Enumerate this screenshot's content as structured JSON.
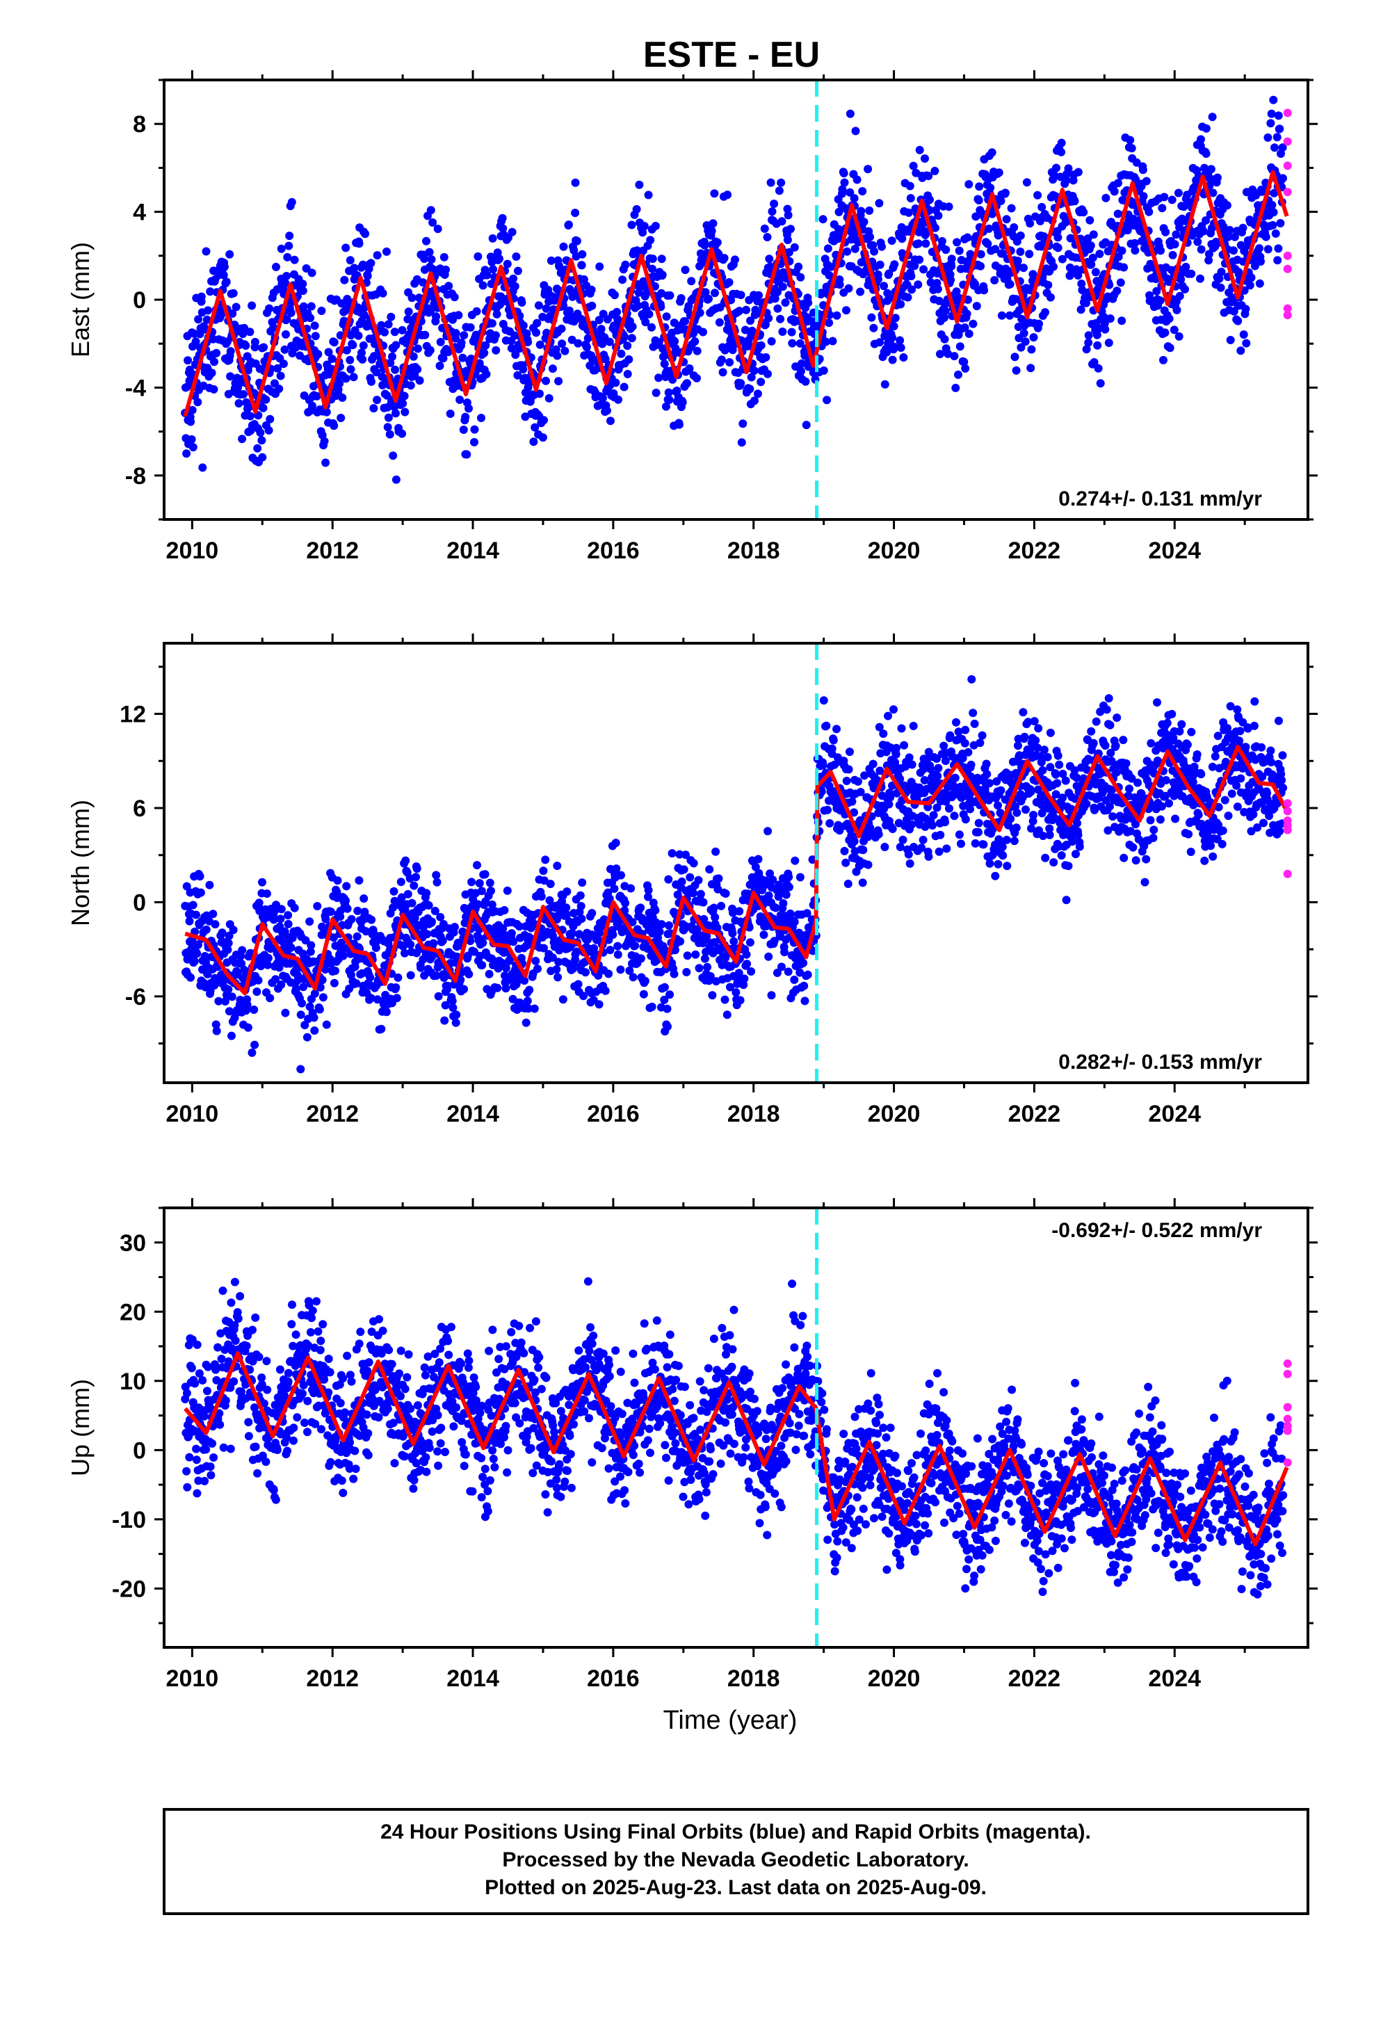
{
  "title": "ESTE - EU",
  "xlabel": "Time (year)",
  "colors": {
    "final_orbits": "#0000ff",
    "rapid_orbits": "#ff22ee",
    "model": "#ff0000",
    "equipment_change": "#22eeee",
    "frame": "#000000"
  },
  "x_ticks": [
    "2010",
    "2012",
    "2014",
    "2016",
    "2018",
    "2020",
    "2022",
    "2024"
  ],
  "footer": {
    "line1": "24 Hour Positions Using Final Orbits (blue) and Rapid Orbits (magenta).",
    "line2": "Processed by the Nevada Geodetic Laboratory.",
    "line3": "Plotted on 2025-Aug-23. Last data on 2025-Aug-09."
  },
  "chart_data": [
    {
      "type": "scatter",
      "component": "east",
      "ylabel": "East (mm)",
      "rate_label": "0.274+/- 0.131 mm/yr",
      "xlim": [
        2009.6,
        2025.9
      ],
      "ylim": [
        -10,
        10
      ],
      "y_ticks": [
        "8",
        "4",
        "0",
        "-4",
        "-8"
      ],
      "y_tick_values": [
        8,
        4,
        0,
        -4,
        -8
      ],
      "equipment_change_year": 2018.9,
      "series": [
        {
          "name": "Final Orbits",
          "style": "dots",
          "date_range": [
            2009.9,
            2025.55
          ],
          "model_trend_approx": {
            "start": -2.6,
            "end": 2.9,
            "seasonal_amplitude_mm": 2.9,
            "scatter_mm": 1.6,
            "offset_at_change_mm": 2.0
          }
        },
        {
          "name": "Rapid Orbits",
          "style": "dots",
          "x": [
            2025.61,
            2025.61,
            2025.61,
            2025.61,
            2025.61,
            2025.61,
            2025.61,
            2025.61
          ],
          "y": [
            8.5,
            7.2,
            6.1,
            4.9,
            2.0,
            1.4,
            -0.4,
            -0.7
          ]
        },
        {
          "name": "Model",
          "style": "line",
          "x": [
            2009.9,
            2010.4,
            2010.9,
            2011.4,
            2011.9,
            2012.4,
            2012.9,
            2013.4,
            2013.9,
            2014.4,
            2014.9,
            2015.4,
            2015.9,
            2016.4,
            2016.9,
            2017.4,
            2017.9,
            2018.4,
            2018.85,
            2019.4,
            2019.9,
            2020.4,
            2020.9,
            2021.4,
            2021.9,
            2022.4,
            2022.9,
            2023.4,
            2023.9,
            2024.4,
            2024.9,
            2025.4,
            2025.6
          ],
          "y": [
            -5.3,
            0.4,
            -5.1,
            0.7,
            -4.9,
            1.0,
            -4.6,
            1.2,
            -4.3,
            1.5,
            -4.1,
            1.8,
            -3.8,
            2.0,
            -3.5,
            2.3,
            -3.3,
            2.5,
            -3.0,
            4.3,
            -1.3,
            4.5,
            -1.0,
            4.8,
            -0.8,
            5.0,
            -0.5,
            5.3,
            -0.2,
            5.6,
            0.1,
            5.8,
            3.8
          ]
        }
      ]
    },
    {
      "type": "scatter",
      "component": "north",
      "ylabel": "North (mm)",
      "rate_label": "0.282+/- 0.153 mm/yr",
      "xlim": [
        2009.6,
        2025.9
      ],
      "ylim": [
        -11.5,
        16.5
      ],
      "y_ticks": [
        "12",
        "6",
        "0",
        "-6"
      ],
      "y_tick_values": [
        12,
        6,
        0,
        -6
      ],
      "equipment_change_year": 2018.9,
      "series": [
        {
          "name": "Final Orbits",
          "style": "dots",
          "date_range": [
            2009.9,
            2025.55
          ],
          "model_trend_approx": {
            "start": -3.6,
            "end": 7.5,
            "seasonal_amplitude_mm": 2.0,
            "scatter_mm": 1.8,
            "offset_at_change_mm": 9.0
          }
        },
        {
          "name": "Rapid Orbits",
          "style": "dots",
          "x": [
            2025.61,
            2025.61,
            2025.61,
            2025.61,
            2025.61,
            2025.61
          ],
          "y": [
            6.3,
            5.8,
            5.2,
            4.9,
            4.6,
            1.8
          ]
        },
        {
          "name": "Model",
          "style": "line",
          "x": [
            2009.9,
            2010.2,
            2010.5,
            2010.75,
            2011.0,
            2011.3,
            2011.5,
            2011.75,
            2012.0,
            2012.3,
            2012.5,
            2012.75,
            2013.0,
            2013.3,
            2013.5,
            2013.75,
            2014.0,
            2014.3,
            2014.5,
            2014.75,
            2015.0,
            2015.3,
            2015.5,
            2015.75,
            2016.0,
            2016.3,
            2016.5,
            2016.75,
            2017.0,
            2017.3,
            2017.5,
            2017.75,
            2018.0,
            2018.3,
            2018.5,
            2018.75,
            2018.89,
            2018.91,
            2019.1,
            2019.5,
            2019.9,
            2020.2,
            2020.5,
            2020.9,
            2021.2,
            2021.5,
            2021.9,
            2022.2,
            2022.5,
            2022.9,
            2023.2,
            2023.5,
            2023.9,
            2024.2,
            2024.5,
            2024.9,
            2025.2,
            2025.4,
            2025.6
          ],
          "y": [
            -2.0,
            -2.4,
            -4.6,
            -5.8,
            -1.4,
            -3.4,
            -3.6,
            -5.5,
            -1.1,
            -3.1,
            -3.3,
            -5.2,
            -0.8,
            -2.9,
            -3.1,
            -5.0,
            -0.6,
            -2.7,
            -2.8,
            -4.7,
            -0.3,
            -2.4,
            -2.6,
            -4.4,
            0.0,
            -2.1,
            -2.3,
            -4.1,
            0.3,
            -1.8,
            -2.0,
            -3.8,
            0.6,
            -1.6,
            -1.7,
            -3.5,
            -1.2,
            7.4,
            8.3,
            4.2,
            8.5,
            6.4,
            6.3,
            8.8,
            6.7,
            4.6,
            9.0,
            6.8,
            4.9,
            9.3,
            7.1,
            5.2,
            9.6,
            7.3,
            5.5,
            9.9,
            7.6,
            7.5,
            5.8
          ]
        }
      ]
    },
    {
      "type": "scatter",
      "component": "up",
      "ylabel": "Up (mm)",
      "rate_label": "-0.692+/- 0.522 mm/yr",
      "xlim": [
        2009.6,
        2025.9
      ],
      "ylim": [
        -28.5,
        35
      ],
      "y_ticks": [
        "30",
        "20",
        "10",
        "0",
        "-10",
        "-20"
      ],
      "y_tick_values": [
        30,
        20,
        10,
        0,
        -10,
        -20
      ],
      "equipment_change_year": 2018.9,
      "series": [
        {
          "name": "Final Orbits",
          "style": "dots",
          "date_range": [
            2009.9,
            2025.55
          ],
          "model_trend_approx": {
            "start": 7.5,
            "end": -6.0,
            "seasonal_amplitude_mm": 6.0,
            "scatter_mm": 4.5,
            "offset_at_change_mm": -11.0
          }
        },
        {
          "name": "Rapid Orbits",
          "style": "dots",
          "x": [
            2025.61,
            2025.61,
            2025.61,
            2025.61,
            2025.61,
            2025.61,
            2025.61
          ],
          "y": [
            12.5,
            11.0,
            6.2,
            4.5,
            3.5,
            2.8,
            -1.8
          ]
        },
        {
          "name": "Model",
          "style": "line",
          "x": [
            2009.9,
            2010.2,
            2010.65,
            2011.15,
            2011.65,
            2012.15,
            2012.65,
            2013.15,
            2013.65,
            2014.15,
            2014.65,
            2015.15,
            2015.65,
            2016.15,
            2016.65,
            2017.15,
            2017.65,
            2018.15,
            2018.65,
            2018.89,
            2019.15,
            2019.65,
            2020.15,
            2020.65,
            2021.15,
            2021.65,
            2022.15,
            2022.65,
            2023.15,
            2023.65,
            2024.15,
            2024.65,
            2025.15,
            2025.6
          ],
          "y": [
            6.0,
            2.5,
            14.0,
            2.0,
            13.4,
            1.4,
            12.8,
            0.9,
            12.2,
            0.3,
            11.6,
            -0.3,
            11.0,
            -0.9,
            10.4,
            -1.5,
            9.8,
            -2.1,
            9.2,
            6.0,
            -10.0,
            1.2,
            -10.6,
            0.6,
            -11.2,
            0.0,
            -11.8,
            -0.6,
            -12.4,
            -1.2,
            -13.0,
            -1.8,
            -13.6,
            -2.5
          ]
        }
      ]
    }
  ]
}
